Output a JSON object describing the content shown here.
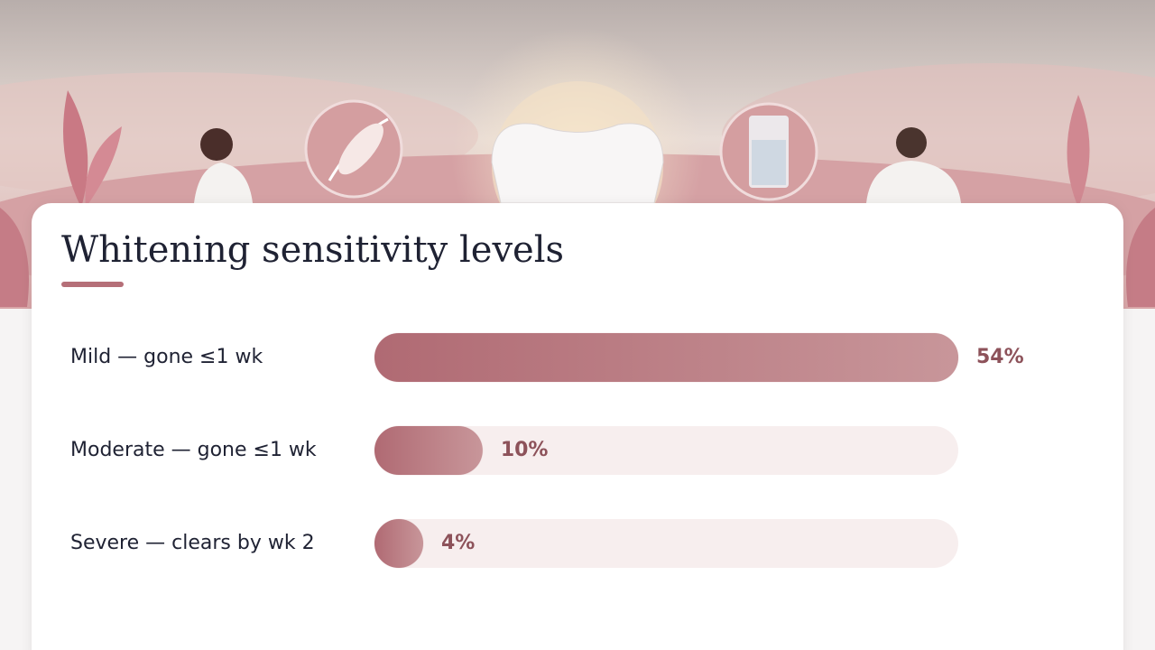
{
  "chart_data": {
    "type": "bar",
    "orientation": "horizontal",
    "title": "Whitening sensitivity levels",
    "categories": [
      "Mild — gone ≤1 wk",
      "Moderate — gone ≤1 wk",
      "Severe — clears by wk 2"
    ],
    "values": [
      54,
      10,
      4
    ],
    "value_labels": [
      "54%",
      "10%",
      "4%"
    ],
    "color": "#b56f78",
    "xlim": [
      0,
      54
    ]
  }
}
